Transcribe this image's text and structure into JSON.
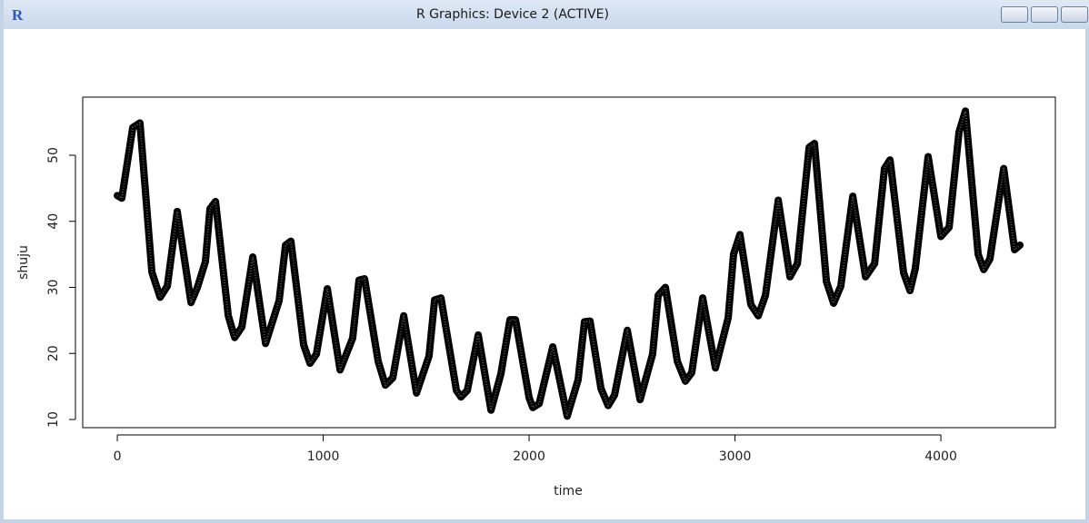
{
  "window": {
    "title": "R Graphics: Device 2 (ACTIVE)"
  },
  "chart_data": {
    "type": "line",
    "color": "#000000",
    "x_label": "time",
    "y_label": "shuju",
    "x": [
      0,
      22,
      75,
      110,
      168,
      208,
      243,
      291,
      358,
      389,
      428,
      450,
      477,
      539,
      570,
      605,
      658,
      720,
      786,
      817,
      843,
      905,
      936,
      967,
      1020,
      1082,
      1143,
      1174,
      1201,
      1267,
      1302,
      1338,
      1391,
      1453,
      1514,
      1541,
      1572,
      1647,
      1669,
      1700,
      1753,
      1815,
      1863,
      1907,
      1934,
      2000,
      2018,
      2049,
      2115,
      2185,
      2238,
      2269,
      2296,
      2349,
      2384,
      2415,
      2477,
      2539,
      2600,
      2627,
      2662,
      2720,
      2759,
      2790,
      2843,
      2905,
      2967,
      2993,
      3024,
      3077,
      3113,
      3148,
      3210,
      3267,
      3303,
      3360,
      3386,
      3444,
      3479,
      3514,
      3572,
      3634,
      3678,
      3726,
      3753,
      3819,
      3850,
      3876,
      3938,
      4000,
      4040,
      4088,
      4119,
      4181,
      4208,
      4238,
      4305,
      4358,
      4384
    ],
    "values": [
      43.9,
      43.5,
      54.2,
      54.9,
      32.3,
      28.5,
      30.2,
      41.5,
      27.7,
      30.0,
      33.9,
      41.9,
      43.0,
      25.7,
      22.4,
      24.0,
      34.6,
      21.5,
      28.0,
      36.4,
      37.0,
      21.3,
      18.5,
      19.9,
      29.8,
      17.5,
      22.3,
      31.1,
      31.3,
      18.8,
      15.2,
      16.3,
      25.7,
      14.0,
      19.6,
      28.1,
      28.4,
      14.4,
      13.4,
      14.4,
      22.8,
      11.4,
      16.9,
      25.1,
      25.1,
      13.3,
      11.8,
      12.4,
      21.0,
      10.5,
      16.0,
      24.8,
      24.9,
      14.7,
      12.1,
      13.7,
      23.5,
      13.0,
      19.9,
      28.8,
      30.0,
      18.8,
      15.8,
      17.1,
      28.4,
      17.8,
      25.4,
      35.0,
      38.0,
      27.4,
      25.7,
      28.8,
      43.2,
      31.6,
      33.6,
      51.2,
      51.8,
      30.9,
      27.6,
      30.2,
      43.8,
      31.6,
      33.6,
      48.0,
      49.3,
      32.2,
      29.5,
      32.9,
      49.8,
      37.7,
      39.1,
      53.5,
      56.7,
      35.0,
      32.7,
      34.3,
      48.0,
      35.7,
      36.4
    ],
    "xlim": [
      -168,
      4556
    ],
    "ylim": [
      8.76,
      58.8
    ],
    "xticks": [
      0,
      1000,
      2000,
      3000,
      4000
    ],
    "yticks": [
      10,
      20,
      30,
      40,
      50
    ]
  }
}
